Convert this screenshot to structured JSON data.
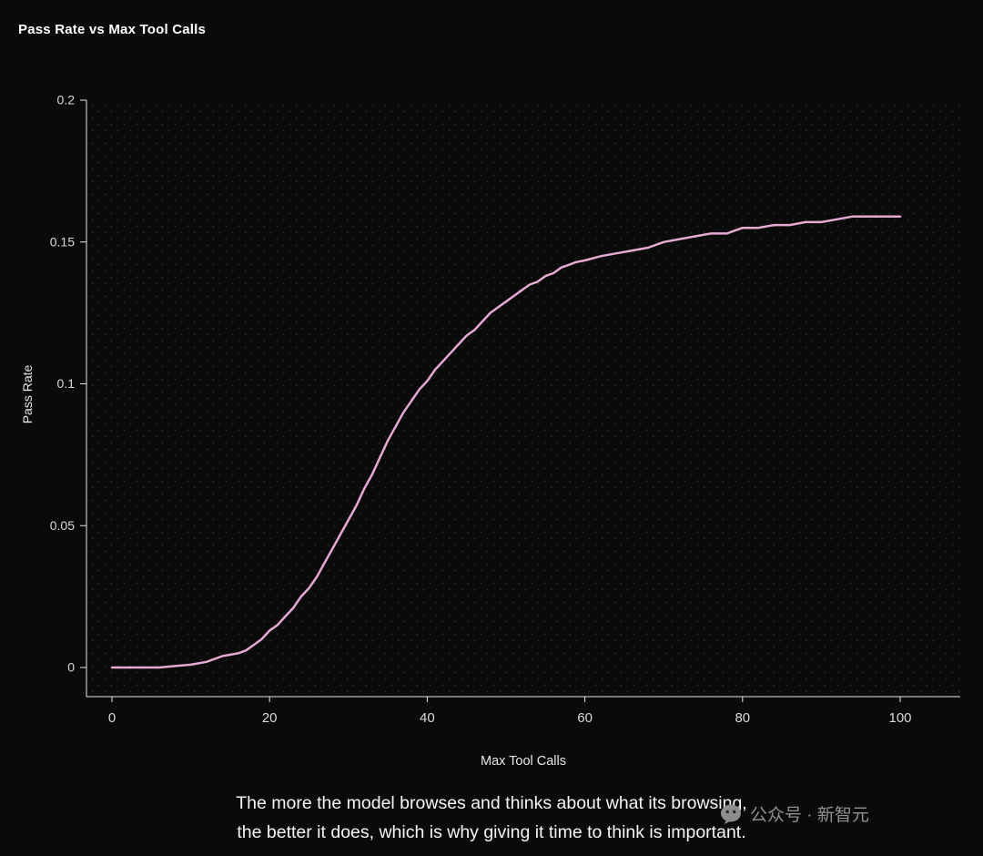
{
  "chart_data": {
    "type": "line",
    "title": "Pass Rate vs Max Tool Calls",
    "xlabel": "Max Tool Calls",
    "ylabel": "Pass Rate",
    "xlim": [
      0,
      100
    ],
    "ylim": [
      0,
      0.2
    ],
    "grid": false,
    "dotted_background": true,
    "legend": "none",
    "line_color": "#e6a9d4",
    "axis_color": "#e8e8e8",
    "tick_label_color": "#d9d9d9",
    "dot_color": "#282828",
    "xticks": [
      {
        "value": 0,
        "label": "0"
      },
      {
        "value": 20,
        "label": "20"
      },
      {
        "value": 40,
        "label": "40"
      },
      {
        "value": 60,
        "label": "60"
      },
      {
        "value": 80,
        "label": "80"
      },
      {
        "value": 100,
        "label": "100"
      }
    ],
    "yticks": [
      {
        "value": 0,
        "label": "0"
      },
      {
        "value": 0.05,
        "label": "0.05"
      },
      {
        "value": 0.1,
        "label": "0.1"
      },
      {
        "value": 0.15,
        "label": "0.15"
      },
      {
        "value": 0.2,
        "label": "0.2"
      }
    ],
    "x": [
      0,
      2,
      4,
      6,
      8,
      10,
      12,
      14,
      16,
      17,
      18,
      19,
      20,
      21,
      22,
      23,
      24,
      25,
      26,
      27,
      28,
      29,
      30,
      31,
      32,
      33,
      34,
      35,
      36,
      37,
      38,
      39,
      40,
      41,
      42,
      43,
      44,
      45,
      46,
      47,
      48,
      49,
      50,
      51,
      52,
      53,
      54,
      55,
      56,
      57,
      58,
      59,
      60,
      62,
      64,
      66,
      68,
      70,
      72,
      74,
      76,
      78,
      80,
      82,
      84,
      86,
      88,
      90,
      92,
      94,
      96,
      98,
      100
    ],
    "y": [
      0,
      0,
      0,
      0,
      0.0005,
      0.001,
      0.002,
      0.004,
      0.005,
      0.006,
      0.008,
      0.01,
      0.013,
      0.015,
      0.018,
      0.021,
      0.025,
      0.028,
      0.032,
      0.037,
      0.042,
      0.047,
      0.052,
      0.057,
      0.063,
      0.068,
      0.074,
      0.08,
      0.085,
      0.09,
      0.094,
      0.098,
      0.101,
      0.105,
      0.108,
      0.111,
      0.114,
      0.117,
      0.119,
      0.122,
      0.125,
      0.127,
      0.129,
      0.131,
      0.133,
      0.135,
      0.136,
      0.138,
      0.139,
      0.141,
      0.142,
      0.143,
      0.1435,
      0.145,
      0.146,
      0.147,
      0.148,
      0.15,
      0.151,
      0.152,
      0.153,
      0.153,
      0.155,
      0.155,
      0.156,
      0.156,
      0.157,
      0.157,
      0.158,
      0.159,
      0.159,
      0.159,
      0.159
    ]
  },
  "caption": {
    "lines": [
      "The more the model browses and thinks about what its browsing,",
      "the better it does, which is why giving it time to think is important."
    ]
  },
  "watermark": {
    "text": "公众号 · 新智元"
  }
}
